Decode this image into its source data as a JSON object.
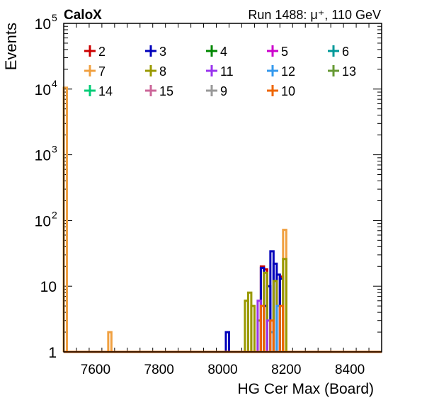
{
  "chart_data": {
    "type": "step-histogram",
    "header_left": "CaloX",
    "header_right": "Run 1488:   μ⁺, 110 GeV",
    "xlabel": "HG Cer Max (Board)",
    "ylabel": "Events",
    "xlim": [
      7500,
      8500
    ],
    "ylim": [
      1,
      100000
    ],
    "yscale": "log",
    "bin_width": 10,
    "x_ticks": [
      7600,
      7800,
      8000,
      8200,
      8400
    ],
    "y_ticks": [
      {
        "value": 1,
        "base": "1",
        "exp": ""
      },
      {
        "value": 10,
        "base": "10",
        "exp": ""
      },
      {
        "value": 100,
        "base": "10",
        "exp": "2"
      },
      {
        "value": 1000,
        "base": "10",
        "exp": "3"
      },
      {
        "value": 10000,
        "base": "10",
        "exp": "4"
      },
      {
        "value": 100000,
        "base": "10",
        "exp": "5"
      }
    ],
    "legend": [
      {
        "label": "2",
        "color": "#cc0000"
      },
      {
        "label": "3",
        "color": "#0000bb"
      },
      {
        "label": "4",
        "color": "#008800"
      },
      {
        "label": "5",
        "color": "#cc00cc"
      },
      {
        "label": "6",
        "color": "#009999"
      },
      {
        "label": "7",
        "color": "#f0a040"
      },
      {
        "label": "8",
        "color": "#999900"
      },
      {
        "label": "11",
        "color": "#9933ee"
      },
      {
        "label": "12",
        "color": "#3399ee"
      },
      {
        "label": "13",
        "color": "#669933"
      },
      {
        "label": "14",
        "color": "#00cc77"
      },
      {
        "label": "15",
        "color": "#cc6699"
      },
      {
        "label": "9",
        "color": "#999999"
      },
      {
        "label": "10",
        "color": "#ee6600"
      }
    ],
    "series": [
      {
        "name": "2",
        "color": "#cc0000",
        "bins": [
          {
            "x0": 8120,
            "x1": 8130,
            "v": 20
          },
          {
            "x0": 8130,
            "x1": 8140,
            "v": 18
          },
          {
            "x0": 8180,
            "x1": 8190,
            "v": 14
          }
        ]
      },
      {
        "name": "3",
        "color": "#0000bb",
        "bins": [
          {
            "x0": 8010,
            "x1": 8020,
            "v": 2
          },
          {
            "x0": 8120,
            "x1": 8130,
            "v": 19
          },
          {
            "x0": 8130,
            "x1": 8140,
            "v": 5
          },
          {
            "x0": 8140,
            "x1": 8150,
            "v": 10
          },
          {
            "x0": 8150,
            "x1": 8160,
            "v": 34
          },
          {
            "x0": 8160,
            "x1": 8170,
            "v": 22
          },
          {
            "x0": 8170,
            "x1": 8180,
            "v": 15
          },
          {
            "x0": 8180,
            "x1": 8190,
            "v": 13
          }
        ]
      },
      {
        "name": "7",
        "color": "#f0a040",
        "bins": [
          {
            "x0": 7500,
            "x1": 7510,
            "v": 10500
          },
          {
            "x0": 7640,
            "x1": 7650,
            "v": 2
          },
          {
            "x0": 8190,
            "x1": 8200,
            "v": 72
          }
        ]
      },
      {
        "name": "8",
        "color": "#999900",
        "bins": [
          {
            "x0": 8070,
            "x1": 8080,
            "v": 6
          },
          {
            "x0": 8080,
            "x1": 8090,
            "v": 8
          },
          {
            "x0": 8090,
            "x1": 8100,
            "v": 5
          },
          {
            "x0": 8110,
            "x1": 8120,
            "v": 3
          },
          {
            "x0": 8130,
            "x1": 8140,
            "v": 16
          },
          {
            "x0": 8160,
            "x1": 8170,
            "v": 12
          },
          {
            "x0": 8190,
            "x1": 8200,
            "v": 26
          }
        ]
      },
      {
        "name": "11",
        "color": "#9933ee",
        "bins": [
          {
            "x0": 8110,
            "x1": 8120,
            "v": 6
          },
          {
            "x0": 8140,
            "x1": 8150,
            "v": 3
          }
        ]
      },
      {
        "name": "12",
        "color": "#3399ee",
        "bins": [
          {
            "x0": 8150,
            "x1": 8160,
            "v": 2
          },
          {
            "x0": 8170,
            "x1": 8180,
            "v": 5
          }
        ]
      },
      {
        "name": "10",
        "color": "#ee6600",
        "bins": [
          {
            "x0": 8120,
            "x1": 8130,
            "v": 5
          },
          {
            "x0": 8150,
            "x1": 8160,
            "v": 3
          },
          {
            "x0": 8180,
            "x1": 8190,
            "v": 5
          }
        ]
      }
    ]
  }
}
